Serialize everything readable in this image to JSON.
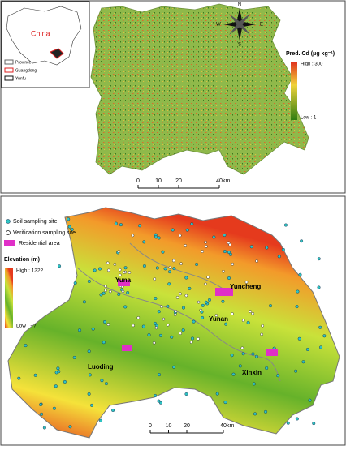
{
  "top_map": {
    "inset": {
      "country": "China",
      "legend": [
        "Province",
        "Guangdong",
        "Yunfu"
      ]
    },
    "compass": {
      "north": "N",
      "south": "S",
      "east": "E",
      "west": "W"
    },
    "legend": {
      "title": "Pred. Cd (μg kg⁻¹)",
      "high": "High : 300",
      "low": "Low : 1"
    },
    "scale_bar": {
      "ticks": [
        0,
        10,
        20,
        40
      ],
      "unit": "km"
    }
  },
  "bottom_map": {
    "legend": {
      "items": [
        "Soil sampling site",
        "Verification sampling site",
        "Residential area"
      ],
      "title": "Elevation (m)",
      "high": "High : 1322",
      "low": "Low : - 7"
    },
    "places": [
      "Yuna",
      "Yuncheng",
      "Yunan",
      "Luoding",
      "Xinxin"
    ],
    "scale_bar": {
      "ticks": [
        0,
        10,
        20,
        40
      ],
      "unit": "km"
    }
  }
}
